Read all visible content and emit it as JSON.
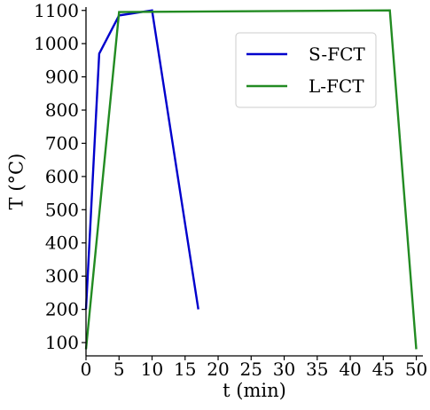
{
  "chart_data": {
    "type": "line",
    "xlabel": "t (min)",
    "ylabel": "T (°C)",
    "xlim": [
      0,
      51
    ],
    "ylim": [
      60,
      1110
    ],
    "xticks": [
      0,
      5,
      10,
      15,
      20,
      25,
      30,
      35,
      40,
      45,
      50
    ],
    "yticks": [
      100,
      200,
      300,
      400,
      500,
      600,
      700,
      800,
      900,
      1000,
      1100
    ],
    "grid": false,
    "legend_position": "top-right",
    "series": [
      {
        "name": "S-FCT",
        "color": "#0000cc",
        "x": [
          0,
          2,
          5,
          10,
          17
        ],
        "y": [
          200,
          970,
          1085,
          1100,
          200
        ]
      },
      {
        "name": "L-FCT",
        "color": "#228b22",
        "x": [
          0,
          5,
          46,
          50
        ],
        "y": [
          80,
          1095,
          1100,
          80
        ]
      }
    ]
  }
}
